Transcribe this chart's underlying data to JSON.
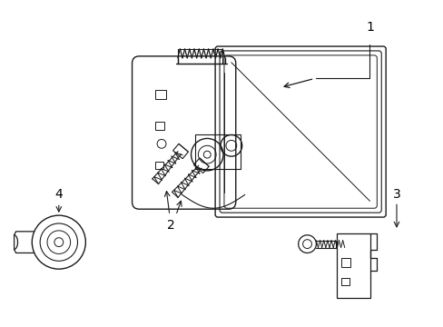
{
  "background_color": "#ffffff",
  "line_color": "#1a1a1a",
  "label_color": "#000000",
  "fig_width": 4.89,
  "fig_height": 3.6,
  "dpi": 100,
  "label_fontsize": 10
}
